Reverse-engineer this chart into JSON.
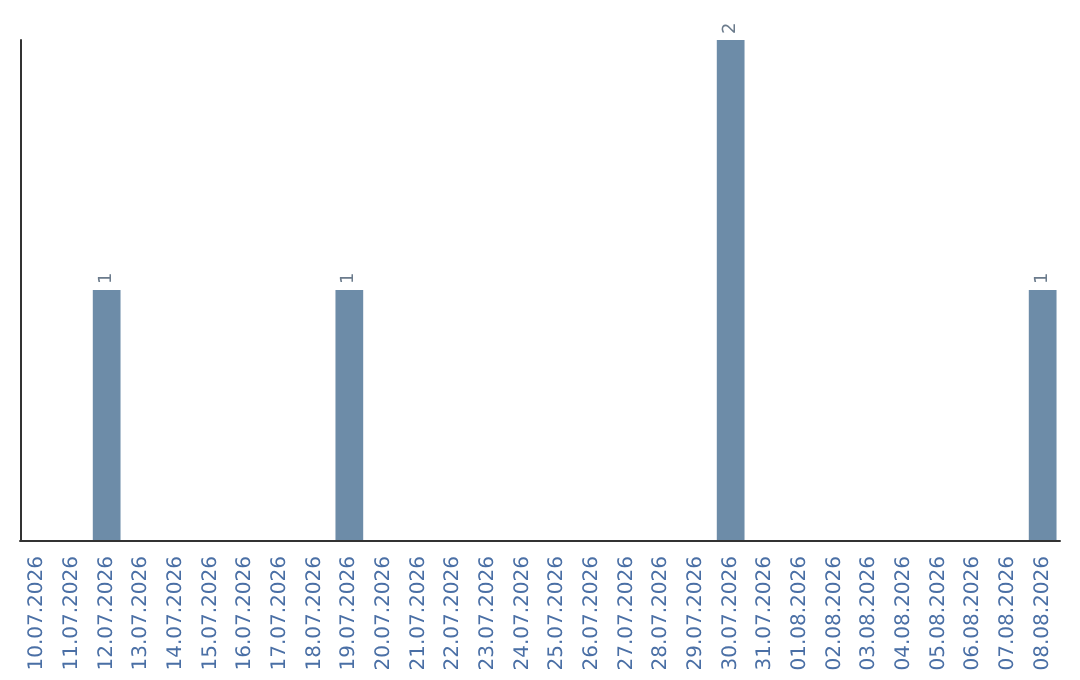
{
  "chart_data": {
    "type": "bar",
    "categories": [
      "10.07.2026",
      "11.07.2026",
      "12.07.2026",
      "13.07.2026",
      "14.07.2026",
      "15.07.2026",
      "16.07.2026",
      "17.07.2026",
      "18.07.2026",
      "19.07.2026",
      "20.07.2026",
      "21.07.2026",
      "22.07.2026",
      "23.07.2026",
      "24.07.2026",
      "25.07.2026",
      "26.07.2026",
      "27.07.2026",
      "28.07.2026",
      "29.07.2026",
      "30.07.2026",
      "31.07.2026",
      "01.08.2026",
      "02.08.2026",
      "03.08.2026",
      "04.08.2026",
      "05.08.2026",
      "06.08.2026",
      "07.08.2026",
      "08.08.2026"
    ],
    "values": [
      0,
      0,
      1,
      0,
      0,
      0,
      0,
      0,
      0,
      1,
      0,
      0,
      0,
      0,
      0,
      0,
      0,
      0,
      0,
      0,
      2,
      0,
      0,
      0,
      0,
      0,
      0,
      0,
      0,
      1
    ],
    "value_labels": [
      null,
      null,
      "1",
      null,
      null,
      null,
      null,
      null,
      null,
      "1",
      null,
      null,
      null,
      null,
      null,
      null,
      null,
      null,
      null,
      null,
      "2",
      null,
      null,
      null,
      null,
      null,
      null,
      null,
      null,
      "1"
    ],
    "color": "#6d8ca8",
    "tick_labels": "x"
  }
}
